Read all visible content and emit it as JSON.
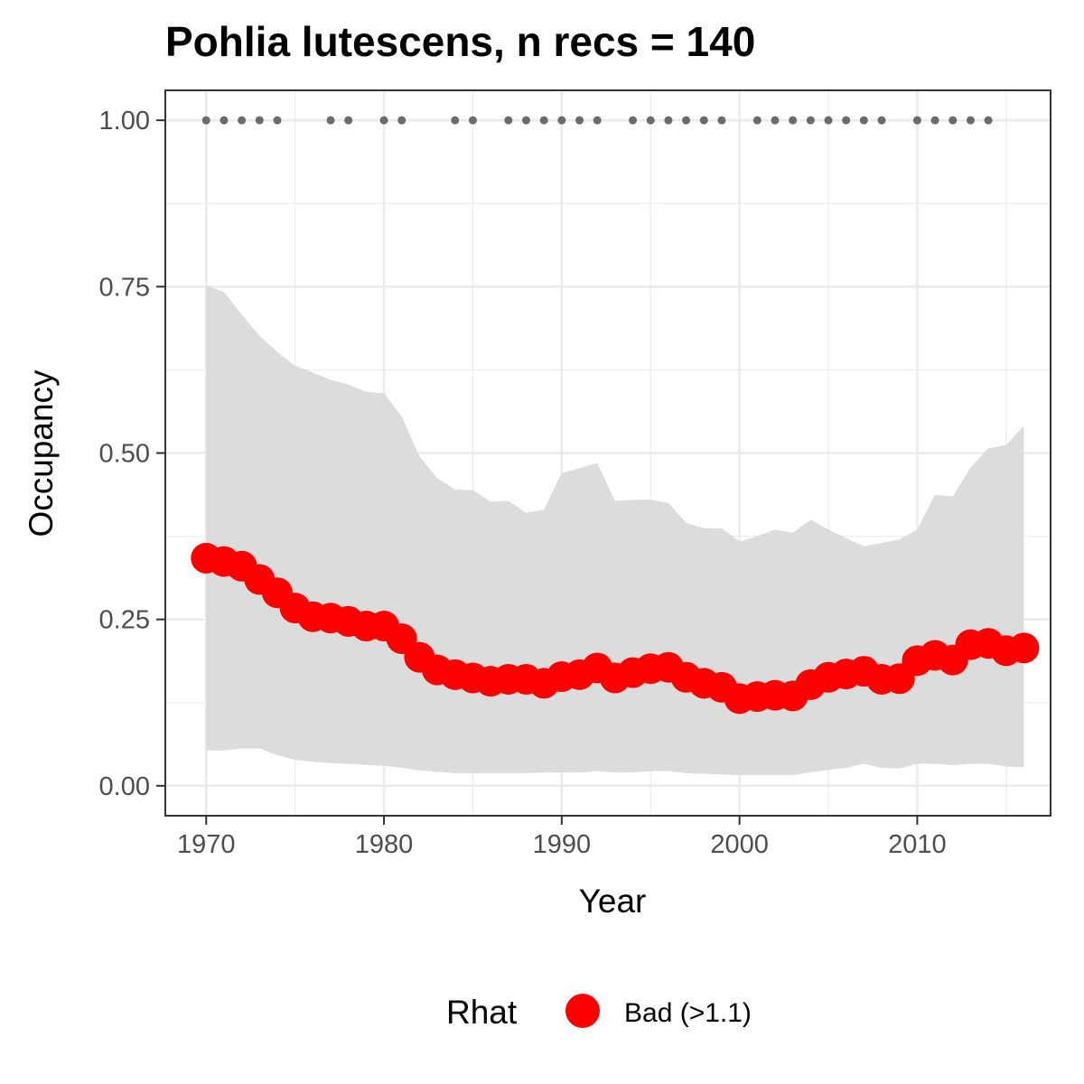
{
  "chart_data": {
    "type": "line",
    "title": "Pohlia lutescens, n recs = 140",
    "xlabel": "Year",
    "ylabel": "Occupancy",
    "xlim": [
      1967.7,
      2017.5
    ],
    "ylim": [
      -0.045,
      1.045
    ],
    "x_ticks": [
      1970,
      1980,
      1990,
      2000,
      2010
    ],
    "y_ticks": [
      "0.00",
      "0.25",
      "0.50",
      "0.75",
      "1.00"
    ],
    "y_tick_values": [
      0,
      0.25,
      0.5,
      0.75,
      1.0
    ],
    "grid": true,
    "legend": {
      "position": "bottom",
      "title": "Rhat",
      "entries": [
        {
          "label": "Bad (>1.1)",
          "color": "#ff0000"
        }
      ]
    },
    "colors": {
      "occupancy": "#ff0000",
      "ribbon": "#d9d9d9",
      "records": "#6b6b6b",
      "panel_border": "#333333",
      "grid": "#ebebeb"
    },
    "series": [
      {
        "name": "Rhat",
        "x": [
          1970,
          1971,
          1972,
          1973,
          1974,
          1975,
          1976,
          1977,
          1978,
          1979,
          1980,
          1981,
          1982,
          1983,
          1984,
          1985,
          1986,
          1987,
          1988,
          1989,
          1990,
          1991,
          1992,
          1993,
          1994,
          1995,
          1996,
          1997,
          1998,
          1999,
          2000,
          2001,
          2002,
          2003,
          2004,
          2005,
          2006,
          2007,
          2008,
          2009,
          2010,
          2011,
          2012,
          2013,
          2014,
          2015,
          2016
        ],
        "values": [
          0.342,
          0.337,
          0.33,
          0.31,
          0.29,
          0.267,
          0.254,
          0.252,
          0.247,
          0.24,
          0.24,
          0.221,
          0.193,
          0.174,
          0.167,
          0.162,
          0.157,
          0.16,
          0.16,
          0.154,
          0.164,
          0.167,
          0.177,
          0.162,
          0.17,
          0.176,
          0.178,
          0.163,
          0.154,
          0.148,
          0.131,
          0.134,
          0.136,
          0.135,
          0.152,
          0.163,
          0.168,
          0.172,
          0.16,
          0.161,
          0.188,
          0.196,
          0.189,
          0.212,
          0.214,
          0.203,
          0.207
        ]
      }
    ],
    "ribbon": {
      "x": [
        1970,
        1971,
        1972,
        1973,
        1974,
        1975,
        1976,
        1977,
        1978,
        1979,
        1980,
        1981,
        1982,
        1983,
        1984,
        1985,
        1986,
        1987,
        1988,
        1989,
        1990,
        1991,
        1992,
        1993,
        1994,
        1995,
        1996,
        1997,
        1998,
        1999,
        2000,
        2001,
        2002,
        2003,
        2004,
        2005,
        2006,
        2007,
        2008,
        2009,
        2010,
        2011,
        2012,
        2013,
        2014,
        2015,
        2016
      ],
      "upper": [
        0.752,
        0.742,
        0.708,
        0.676,
        0.652,
        0.631,
        0.621,
        0.61,
        0.603,
        0.592,
        0.59,
        0.555,
        0.495,
        0.462,
        0.445,
        0.444,
        0.427,
        0.428,
        0.41,
        0.415,
        0.47,
        0.477,
        0.485,
        0.428,
        0.43,
        0.43,
        0.425,
        0.395,
        0.387,
        0.387,
        0.367,
        0.375,
        0.385,
        0.38,
        0.4,
        0.385,
        0.372,
        0.36,
        0.365,
        0.37,
        0.385,
        0.437,
        0.435,
        0.478,
        0.507,
        0.512,
        0.541
      ],
      "lower": [
        0.053,
        0.053,
        0.056,
        0.056,
        0.046,
        0.039,
        0.036,
        0.034,
        0.033,
        0.031,
        0.03,
        0.027,
        0.023,
        0.021,
        0.019,
        0.019,
        0.019,
        0.019,
        0.019,
        0.02,
        0.02,
        0.02,
        0.022,
        0.02,
        0.02,
        0.022,
        0.022,
        0.019,
        0.018,
        0.017,
        0.016,
        0.016,
        0.016,
        0.016,
        0.02,
        0.024,
        0.027,
        0.033,
        0.027,
        0.026,
        0.033,
        0.033,
        0.031,
        0.033,
        0.033,
        0.029,
        0.028
      ]
    },
    "records": {
      "y": 1.0,
      "x": [
        1970,
        1971,
        1972,
        1973,
        1974,
        1977,
        1978,
        1980,
        1981,
        1984,
        1985,
        1987,
        1988,
        1989,
        1990,
        1991,
        1992,
        1994,
        1995,
        1996,
        1997,
        1998,
        1999,
        2001,
        2002,
        2003,
        2004,
        2005,
        2006,
        2007,
        2008,
        2010,
        2011,
        2012,
        2013,
        2014
      ]
    }
  }
}
